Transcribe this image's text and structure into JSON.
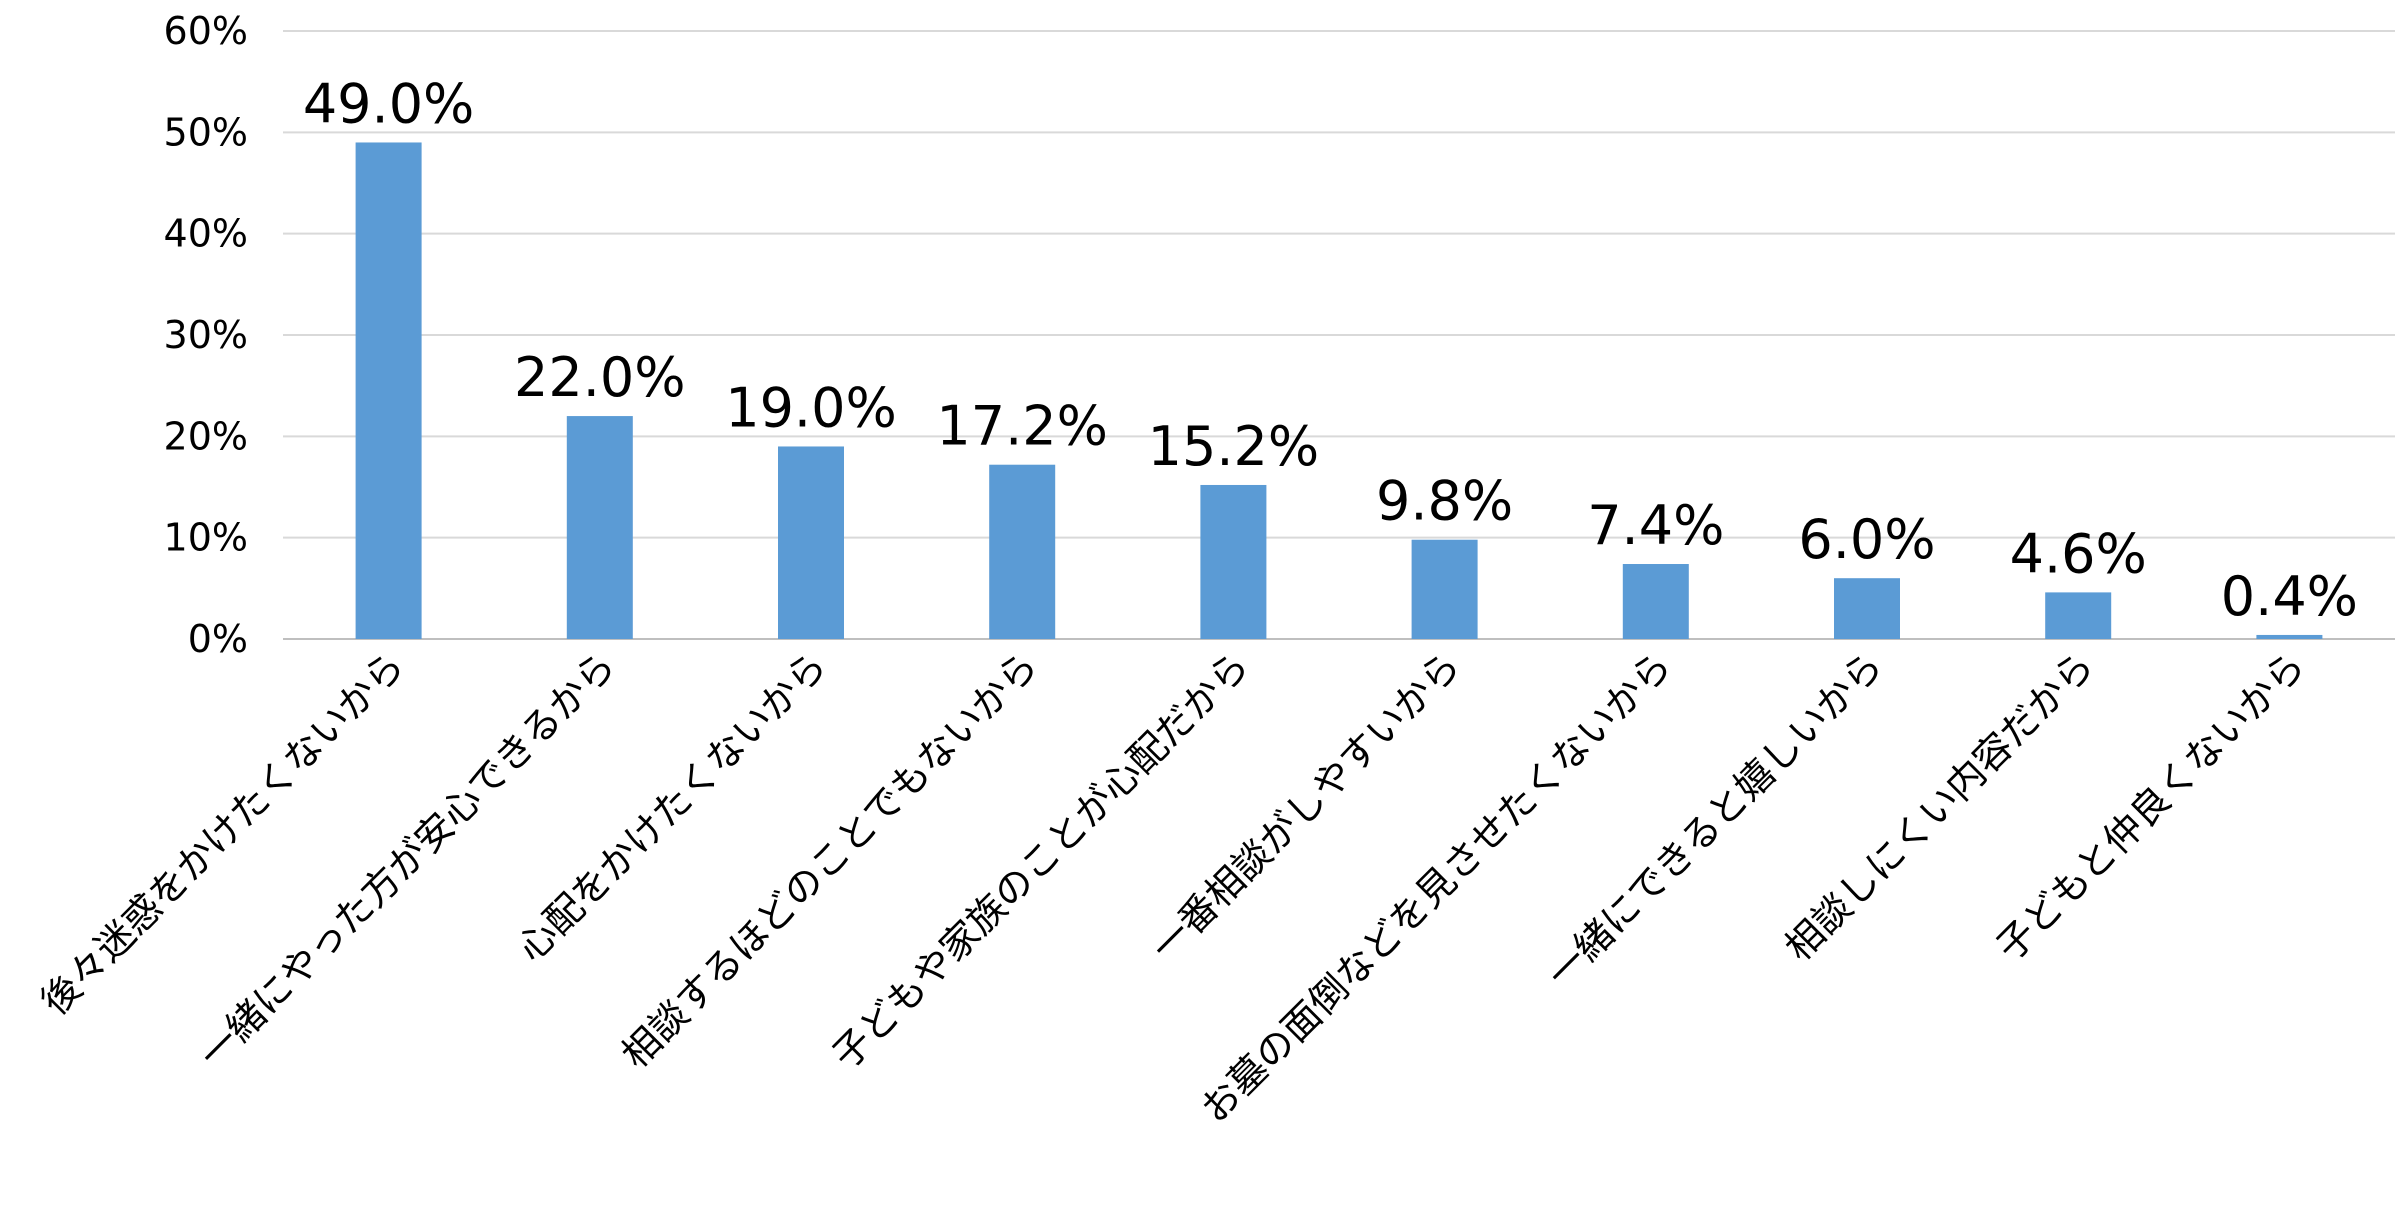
{
  "chart_data": {
    "type": "bar",
    "title": "",
    "xlabel": "",
    "ylabel": "",
    "ylim": [
      0,
      60
    ],
    "y_ticks": [
      "0%",
      "10%",
      "20%",
      "30%",
      "40%",
      "50%",
      "60%"
    ],
    "grid": true,
    "legend": "none",
    "bar_color": "#5b9bd5",
    "categories": [
      "後々迷惑をかけたくないから",
      "一緒にやった方が安心できるから",
      "心配をかけたくないから",
      "相談するほどのことでもないから",
      "子どもや家族のことが心配だから",
      "一番相談がしやすいから",
      "お墓の面倒などを見させたくないから",
      "一緒にできると嬉しいから",
      "相談しにくい内容だから",
      "子どもと仲良くないから"
    ],
    "values": [
      49.0,
      22.0,
      19.0,
      17.2,
      15.2,
      9.8,
      7.4,
      6.0,
      4.6,
      0.4
    ],
    "data_labels": [
      "49.0%",
      "22.0%",
      "19.0%",
      "17.2%",
      "15.2%",
      "9.8%",
      "7.4%",
      "6.0%",
      "4.6%",
      "0.4%"
    ]
  }
}
